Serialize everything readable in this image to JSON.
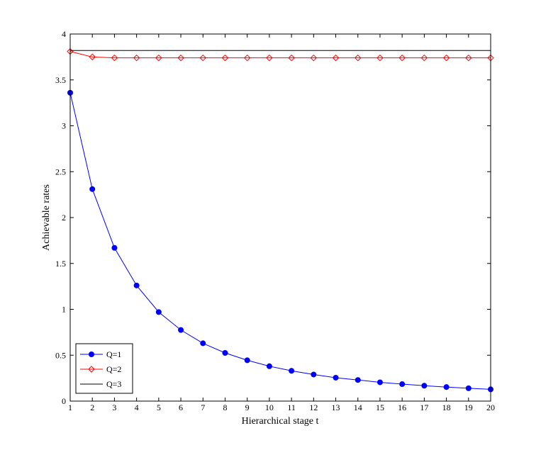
{
  "chart_data": {
    "type": "line",
    "title": "",
    "xlabel": "Hierarchical stage t",
    "ylabel": "Achievable rates",
    "xlim": [
      1,
      20
    ],
    "ylim": [
      0,
      4
    ],
    "xticks": [
      1,
      2,
      3,
      4,
      5,
      6,
      7,
      8,
      9,
      10,
      11,
      12,
      13,
      14,
      15,
      16,
      17,
      18,
      19,
      20
    ],
    "yticks": [
      0,
      0.5,
      1,
      1.5,
      2,
      2.5,
      3,
      3.5,
      4
    ],
    "ytick_labels": [
      "0",
      "0.5",
      "1",
      "1.5",
      "2",
      "2.5",
      "3",
      "3.5",
      "4"
    ],
    "grid": false,
    "legend_position": "bottom-left",
    "x": [
      1,
      2,
      3,
      4,
      5,
      6,
      7,
      8,
      9,
      10,
      11,
      12,
      13,
      14,
      15,
      16,
      17,
      18,
      19,
      20
    ],
    "series": [
      {
        "name": "Q=1",
        "color": "#0000ff",
        "marker": "circle",
        "values": [
          3.36,
          2.31,
          1.67,
          1.26,
          0.97,
          0.775,
          0.63,
          0.525,
          0.445,
          0.38,
          0.33,
          0.29,
          0.255,
          0.23,
          0.205,
          0.185,
          0.168,
          0.153,
          0.14,
          0.128
        ]
      },
      {
        "name": "Q=2",
        "color": "#ff0000",
        "marker": "diamond",
        "values": [
          3.81,
          3.75,
          3.74,
          3.74,
          3.74,
          3.74,
          3.74,
          3.74,
          3.74,
          3.74,
          3.74,
          3.74,
          3.74,
          3.74,
          3.74,
          3.74,
          3.74,
          3.74,
          3.74,
          3.74
        ]
      },
      {
        "name": "Q=3",
        "color": "#000000",
        "marker": "none",
        "values": [
          3.82,
          3.82,
          3.82,
          3.82,
          3.82,
          3.82,
          3.82,
          3.82,
          3.82,
          3.82,
          3.82,
          3.82,
          3.82,
          3.82,
          3.82,
          3.82,
          3.82,
          3.82,
          3.82,
          3.82
        ]
      }
    ]
  }
}
